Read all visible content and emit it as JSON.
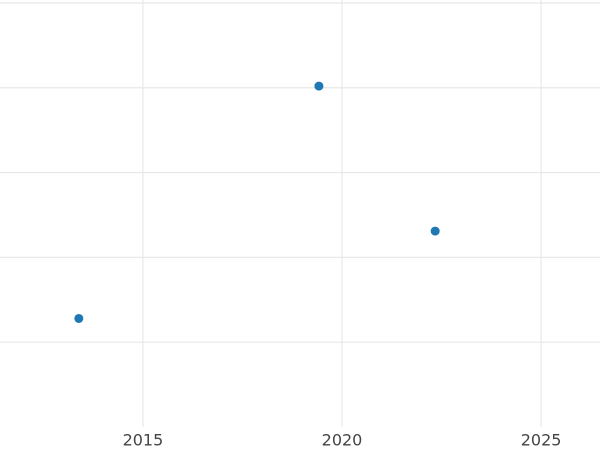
{
  "chart_data": {
    "type": "scatter",
    "x": [
      2013.39,
      2019.42,
      2022.34
    ],
    "series": [
      {
        "color": "#1f77b4",
        "values": [
          1.28,
          4.02,
          2.31
        ]
      }
    ],
    "xlim": [
      2011.41,
      2026.48
    ],
    "xticks": [
      2015,
      2020,
      2025
    ],
    "ylim": [
      0,
      5.035
    ],
    "yticks": [
      1,
      2,
      3,
      4,
      5
    ],
    "grid": true
  }
}
